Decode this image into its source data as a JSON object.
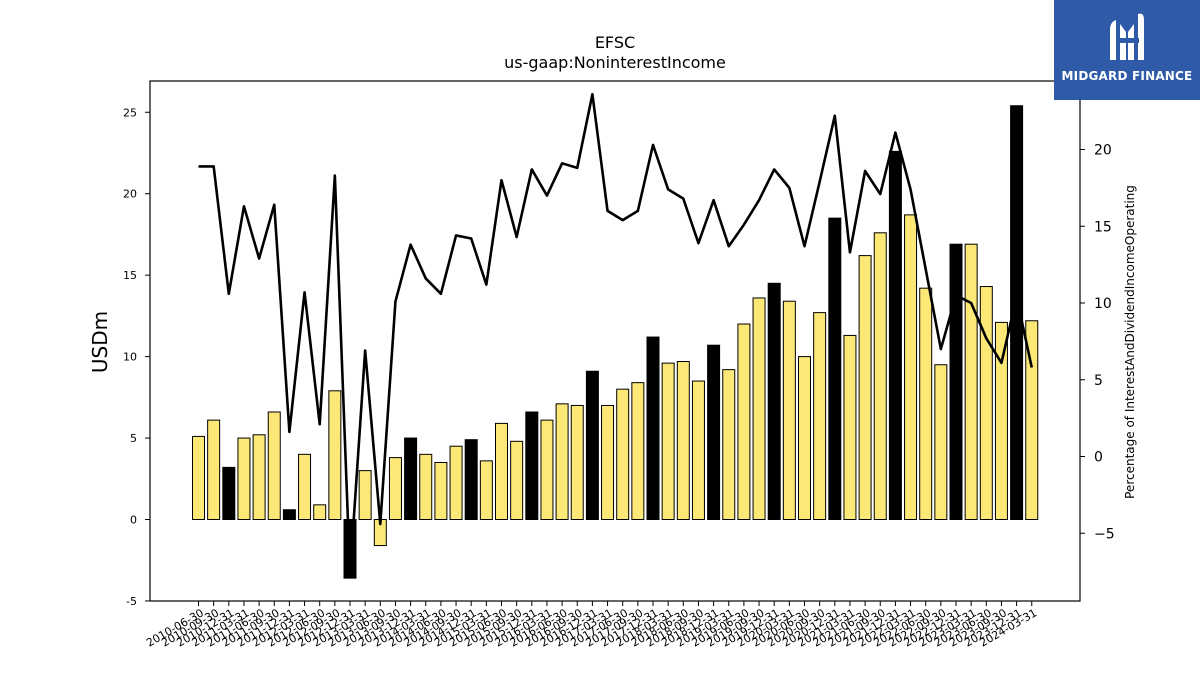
{
  "chart_data": {
    "type": "bar",
    "title": "EFSC",
    "subtitle": "us-gaap:NoninterestIncome",
    "ylabel": "USDm",
    "y2label": "Percentage of InterestAndDividendIncomeOperating",
    "ylim": [
      -5,
      27
    ],
    "y2lim": [
      -9.4,
      24.4
    ],
    "yticks": [
      -5,
      0,
      5,
      10,
      15,
      20,
      25
    ],
    "y2ticks": [
      -5,
      0,
      5,
      10,
      15,
      20
    ],
    "categories": [
      "2010-06-30",
      "2010-09-30",
      "2010-12-31",
      "2011-03-31",
      "2011-06-30",
      "2011-09-30",
      "2011-12-31",
      "2012-03-31",
      "2012-06-30",
      "2012-09-30",
      "2012-12-31",
      "2013-03-31",
      "2013-06-30",
      "2013-09-30",
      "2013-12-31",
      "2014-03-31",
      "2014-06-30",
      "2014-09-30",
      "2014-12-31",
      "2015-03-31",
      "2015-06-30",
      "2015-09-30",
      "2015-12-31",
      "2016-03-31",
      "2016-06-30",
      "2016-09-30",
      "2016-12-31",
      "2017-03-31",
      "2017-06-30",
      "2017-09-30",
      "2017-12-31",
      "2018-03-31",
      "2018-06-30",
      "2018-09-30",
      "2018-12-31",
      "2019-03-31",
      "2019-06-30",
      "2019-09-30",
      "2019-12-31",
      "2020-03-31",
      "2020-06-30",
      "2020-09-30",
      "2020-12-31",
      "2021-03-31",
      "2021-06-30",
      "2021-09-30",
      "2021-12-31",
      "2022-03-31",
      "2022-06-30",
      "2022-09-30",
      "2022-12-31",
      "2023-03-31",
      "2023-06-30",
      "2023-09-30",
      "2023-12-31",
      "2024-03-31"
    ],
    "series": [
      {
        "type": "bar",
        "values": [
          5.1,
          6.1,
          3.2,
          5.0,
          5.2,
          6.6,
          0.6,
          4.0,
          0.9,
          7.9,
          -3.6,
          3.0,
          -1.6,
          3.8,
          5.0,
          4.0,
          3.5,
          4.5,
          4.9,
          3.6,
          5.9,
          4.8,
          6.6,
          6.1,
          7.1,
          7.0,
          9.1,
          7.0,
          8.0,
          8.4,
          11.2,
          9.6,
          9.7,
          8.5,
          10.7,
          9.2,
          12.0,
          13.6,
          14.5,
          13.4,
          10.0,
          12.7,
          18.5,
          11.3,
          16.2,
          17.6,
          22.6,
          18.7,
          14.2,
          9.5,
          16.9,
          16.9,
          14.3,
          12.1,
          25.4,
          12.2
        ]
      },
      {
        "type": "line",
        "axis": "right",
        "values": [
          18.9,
          18.9,
          10.6,
          16.3,
          12.9,
          16.4,
          1.6,
          10.7,
          2.1,
          18.3,
          -7.7,
          6.9,
          -4.4,
          10.1,
          13.8,
          11.6,
          10.6,
          14.4,
          14.2,
          11.2,
          18.0,
          14.3,
          18.7,
          17.0,
          19.1,
          18.8,
          23.6,
          16.0,
          15.4,
          16.0,
          20.3,
          17.4,
          16.8,
          13.9,
          16.7,
          13.7,
          15.1,
          16.7,
          18.7,
          17.5,
          13.7,
          17.9,
          22.2,
          13.3,
          18.6,
          17.1,
          21.1,
          17.4,
          12.2,
          7.0,
          10.5,
          10.0,
          7.7,
          6.1,
          10.4,
          5.8
        ]
      }
    ],
    "colors": {
      "bar_default": "#fbe876",
      "bar_highlight": "#000000",
      "line": "#000000"
    },
    "highlighted_indices": [
      2,
      6,
      10,
      14,
      18,
      22,
      26,
      30,
      34,
      38,
      42,
      46,
      50,
      54
    ]
  },
  "logo": {
    "text": "MIDGARD FINANCE",
    "background": "#2e5aa8"
  }
}
